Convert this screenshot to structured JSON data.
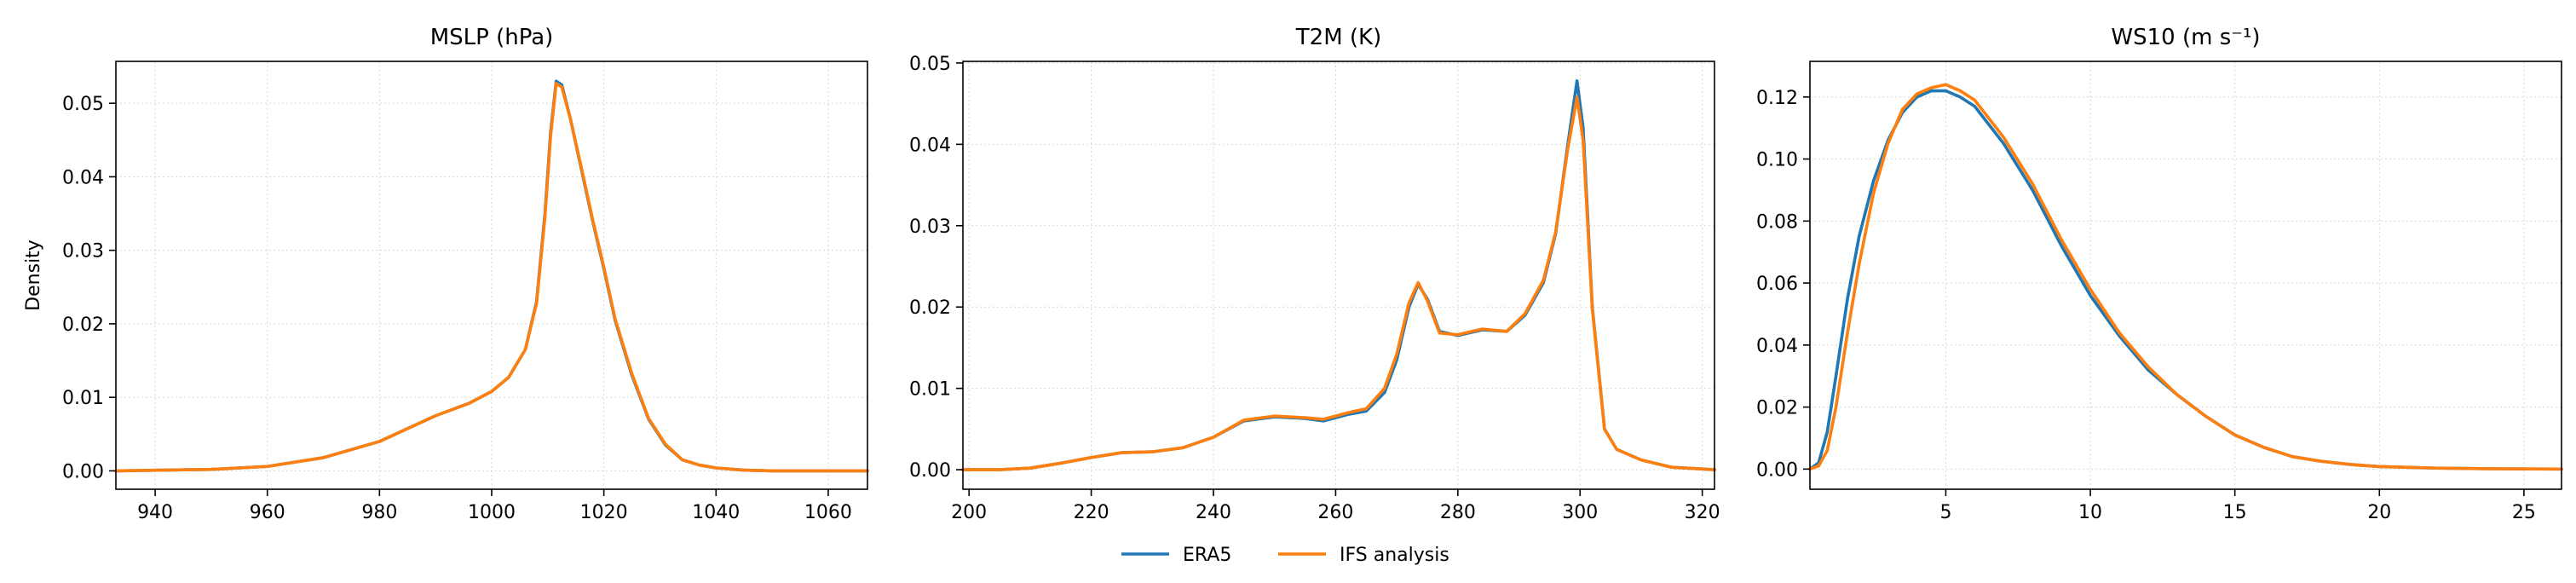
{
  "legend": {
    "placement": "bottom-center",
    "entries": [
      {
        "name": "ERA5",
        "color": "#1f77b4"
      },
      {
        "name": "IFS analysis",
        "color": "#ff7f0e"
      }
    ]
  },
  "chart_data": [
    {
      "type": "line",
      "title": "MSLP (hPa)",
      "xlabel": "",
      "ylabel": "Density",
      "xlim": [
        933,
        1067
      ],
      "ylim": [
        -0.0025,
        0.0557
      ],
      "xticks": [
        940,
        960,
        980,
        1000,
        1020,
        1040,
        1060
      ],
      "xtick_labels": [
        "940",
        "960",
        "980",
        "1000",
        "1020",
        "1040",
        "1060"
      ],
      "yticks": [
        0,
        0.01,
        0.02,
        0.03,
        0.04,
        0.05
      ],
      "ytick_labels": [
        "0.00",
        "0.01",
        "0.02",
        "0.03",
        "0.04",
        "0.05"
      ],
      "grid": true,
      "series": [
        {
          "name": "ERA5",
          "color": "#1f77b4",
          "x": [
            933,
            950,
            960,
            970,
            980,
            990,
            996,
            1000,
            1003,
            1006,
            1008,
            1009.5,
            1010.5,
            1011.5,
            1012.5,
            1014,
            1016,
            1018,
            1020,
            1022,
            1025,
            1028,
            1031,
            1034,
            1037,
            1040,
            1045,
            1050,
            1067
          ],
          "y": [
            0,
            0.0002,
            0.0006,
            0.0018,
            0.004,
            0.0075,
            0.0092,
            0.0108,
            0.0127,
            0.0165,
            0.023,
            0.035,
            0.046,
            0.053,
            0.0525,
            0.048,
            0.041,
            0.034,
            0.0275,
            0.0205,
            0.013,
            0.007,
            0.0035,
            0.0015,
            0.0008,
            0.0004,
            0.0001,
            0,
            0
          ]
        },
        {
          "name": "IFS analysis",
          "color": "#ff7f0e",
          "x": [
            933,
            950,
            960,
            970,
            980,
            990,
            996,
            1000,
            1003,
            1006,
            1008,
            1009.5,
            1010.5,
            1011.5,
            1012.5,
            1014,
            1016,
            1018,
            1020,
            1022,
            1025,
            1028,
            1031,
            1034,
            1037,
            1040,
            1045,
            1050,
            1067
          ],
          "y": [
            0,
            0.0002,
            0.0006,
            0.0018,
            0.004,
            0.0075,
            0.0092,
            0.0108,
            0.0127,
            0.0165,
            0.0228,
            0.0345,
            0.0455,
            0.0527,
            0.0522,
            0.048,
            0.0412,
            0.0342,
            0.0277,
            0.0207,
            0.0132,
            0.0071,
            0.0036,
            0.0015,
            0.0008,
            0.0004,
            0.0001,
            0,
            0
          ]
        }
      ]
    },
    {
      "type": "line",
      "title": "T2M (K)",
      "xlabel": "",
      "ylabel": "",
      "xlim": [
        199,
        322
      ],
      "ylim": [
        -0.0024,
        0.0502
      ],
      "xticks": [
        200,
        220,
        240,
        260,
        280,
        300,
        320
      ],
      "xtick_labels": [
        "200",
        "220",
        "240",
        "260",
        "280",
        "300",
        "320"
      ],
      "yticks": [
        0,
        0.01,
        0.02,
        0.03,
        0.04,
        0.05
      ],
      "ytick_labels": [
        "0.00",
        "0.01",
        "0.02",
        "0.03",
        "0.04",
        "0.05"
      ],
      "grid": true,
      "series": [
        {
          "name": "ERA5",
          "color": "#1f77b4",
          "x": [
            199,
            205,
            210,
            215,
            220,
            225,
            230,
            235,
            240,
            245,
            250,
            255,
            258,
            262,
            265,
            268,
            270,
            272,
            273.5,
            275,
            277,
            280,
            284,
            288,
            291,
            294,
            296,
            298,
            299.5,
            300.5,
            302,
            304,
            306,
            310,
            315,
            322
          ],
          "y": [
            0,
            0,
            0.0002,
            0.0008,
            0.0015,
            0.0021,
            0.0022,
            0.0027,
            0.004,
            0.006,
            0.0065,
            0.0063,
            0.006,
            0.0068,
            0.0072,
            0.0095,
            0.0135,
            0.02,
            0.0228,
            0.021,
            0.017,
            0.0165,
            0.0172,
            0.017,
            0.019,
            0.023,
            0.029,
            0.04,
            0.0478,
            0.042,
            0.02,
            0.005,
            0.0025,
            0.0012,
            0.0003,
            0
          ]
        },
        {
          "name": "IFS analysis",
          "color": "#ff7f0e",
          "x": [
            199,
            205,
            210,
            215,
            220,
            225,
            230,
            235,
            240,
            245,
            250,
            255,
            258,
            262,
            265,
            268,
            270,
            272,
            273.5,
            275,
            277,
            280,
            284,
            288,
            291,
            294,
            296,
            298,
            299.5,
            300.5,
            302,
            304,
            306,
            310,
            315,
            322
          ],
          "y": [
            0,
            0,
            0.0002,
            0.0008,
            0.0015,
            0.0021,
            0.0022,
            0.0027,
            0.004,
            0.0061,
            0.0066,
            0.0064,
            0.0062,
            0.007,
            0.0075,
            0.01,
            0.0142,
            0.0205,
            0.023,
            0.0208,
            0.0168,
            0.0166,
            0.0173,
            0.017,
            0.0192,
            0.0233,
            0.0292,
            0.0395,
            0.0458,
            0.0405,
            0.0198,
            0.005,
            0.0025,
            0.0012,
            0.0003,
            0
          ]
        }
      ]
    },
    {
      "type": "line",
      "title": "WS10 (m s⁻¹)",
      "xlabel": "",
      "ylabel": "",
      "xlim": [
        0.3,
        26.3
      ],
      "ylim": [
        -0.0065,
        0.1315
      ],
      "xticks": [
        5,
        10,
        15,
        20,
        25
      ],
      "xtick_labels": [
        "5",
        "10",
        "15",
        "20",
        "25"
      ],
      "yticks": [
        0,
        0.02,
        0.04,
        0.06,
        0.08,
        0.1,
        0.12
      ],
      "ytick_labels": [
        "0.00",
        "0.02",
        "0.04",
        "0.06",
        "0.08",
        "0.10",
        "0.12"
      ],
      "grid": true,
      "series": [
        {
          "name": "ERA5",
          "color": "#1f77b4",
          "x": [
            0.3,
            0.6,
            0.9,
            1.2,
            1.6,
            2,
            2.5,
            3,
            3.5,
            4,
            4.5,
            5,
            5.5,
            6,
            7,
            8,
            9,
            10,
            11,
            12,
            13,
            14,
            15,
            16,
            17,
            18,
            19,
            20,
            22,
            24,
            26.3
          ],
          "y": [
            0,
            0.002,
            0.012,
            0.03,
            0.055,
            0.075,
            0.093,
            0.106,
            0.115,
            0.12,
            0.122,
            0.122,
            0.12,
            0.117,
            0.105,
            0.09,
            0.072,
            0.056,
            0.043,
            0.032,
            0.024,
            0.017,
            0.011,
            0.007,
            0.004,
            0.0025,
            0.0015,
            0.0008,
            0.0003,
            0.0001,
            0
          ]
        },
        {
          "name": "IFS analysis",
          "color": "#ff7f0e",
          "x": [
            0.3,
            0.6,
            0.9,
            1.2,
            1.6,
            2,
            2.5,
            3,
            3.5,
            4,
            4.5,
            5,
            5.5,
            6,
            7,
            8,
            9,
            10,
            11,
            12,
            13,
            14,
            15,
            16,
            17,
            18,
            19,
            20,
            22,
            24,
            26.3
          ],
          "y": [
            0,
            0.001,
            0.006,
            0.02,
            0.044,
            0.066,
            0.089,
            0.105,
            0.116,
            0.121,
            0.123,
            0.124,
            0.122,
            0.119,
            0.107,
            0.092,
            0.074,
            0.058,
            0.044,
            0.033,
            0.024,
            0.017,
            0.011,
            0.007,
            0.004,
            0.0025,
            0.0015,
            0.0008,
            0.0003,
            0.0001,
            0
          ]
        }
      ]
    }
  ]
}
